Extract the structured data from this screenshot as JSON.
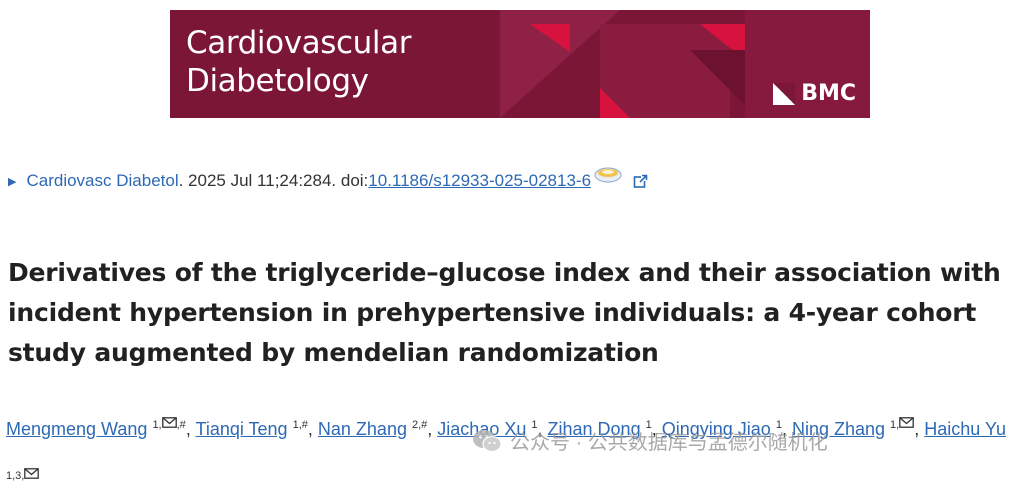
{
  "banner": {
    "journal_line1": "Cardiovascular",
    "journal_line2": "Diabetology",
    "publisher": "BMC",
    "background_color": "#7b1637"
  },
  "citation": {
    "journal": "Cardiovasc Diabetol",
    "details": ". 2025 Jul 11;24:284. doi: ",
    "doi": "10.1186/s12933-025-02813-6",
    "icons": [
      "expand-triangle-icon",
      "doi-badge-icon",
      "external-link-icon"
    ]
  },
  "article": {
    "title": "Derivatives of the triglyceride–glucose index and their association with incident hypertension in prehypertensive individuals: a 4-year cohort study augmented by mendelian randomization"
  },
  "authors": [
    {
      "name": "Mengmeng Wang",
      "sup_pre": "1,",
      "mail": true,
      "sup_post": ",#",
      "sep": ", "
    },
    {
      "name": "Tianqi Teng",
      "sup_pre": "1,#",
      "mail": false,
      "sup_post": "",
      "sep": ", "
    },
    {
      "name": "Nan Zhang",
      "sup_pre": "2,#",
      "mail": false,
      "sup_post": "",
      "sep": ", "
    },
    {
      "name": "Jiachao Xu",
      "sup_pre": "1",
      "mail": false,
      "sup_post": "",
      "sep": ", "
    },
    {
      "name": "Zihan Dong",
      "sup_pre": "1",
      "mail": false,
      "sup_post": "",
      "sep": ", "
    },
    {
      "name": "Qingying Jiao",
      "sup_pre": "1",
      "mail": false,
      "sup_post": "",
      "sep": ", "
    },
    {
      "name": "Ning Zhang",
      "sup_pre": "1,",
      "mail": true,
      "sup_post": "",
      "sep": ", "
    },
    {
      "name": "Haichu Yu",
      "sup_pre": "1,3,",
      "mail": true,
      "sup_post": "",
      "sep": ""
    }
  ],
  "watermark": {
    "text": "公众号 · 公共数据库与孟德尔随机化"
  },
  "colors": {
    "link": "#2d69b4",
    "accent_red": "#d8123f"
  }
}
